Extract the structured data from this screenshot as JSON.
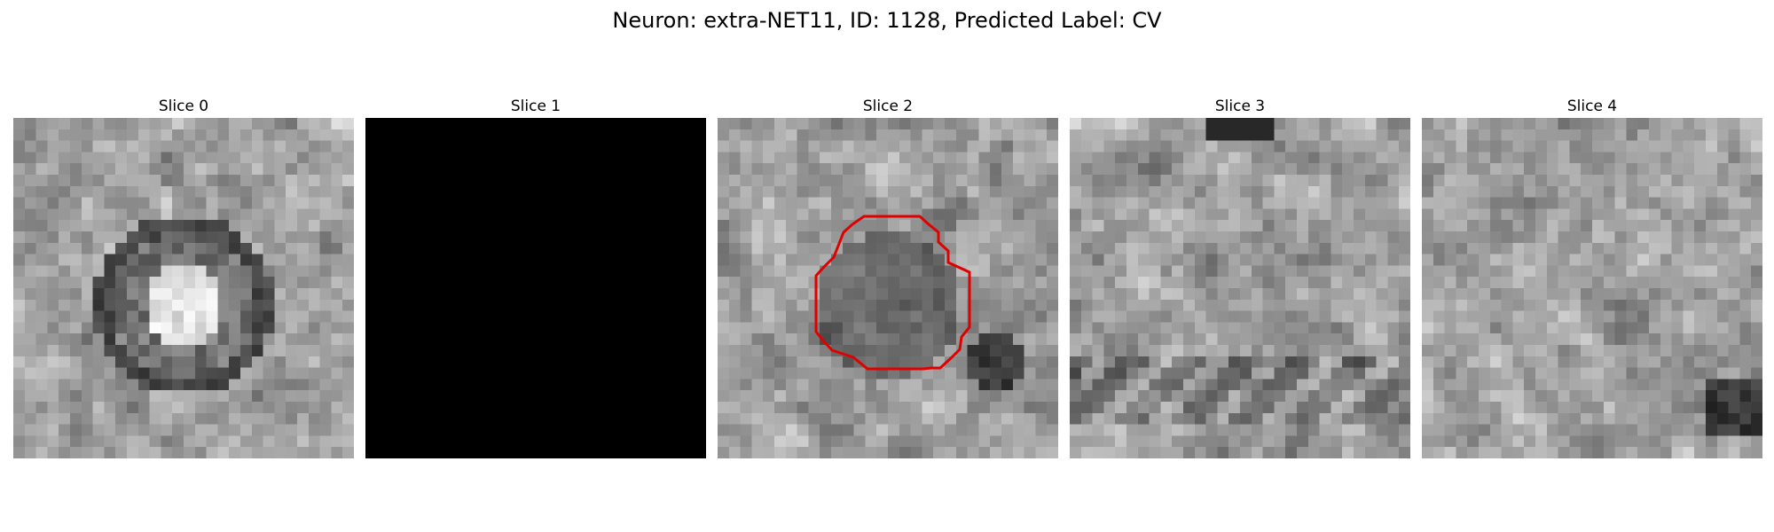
{
  "figure": {
    "title": "Neuron: extra-NET11, ID: 1128, Predicted Label: CV"
  },
  "panels": [
    {
      "label": "Slice 0",
      "kind": "ring",
      "seed": 11
    },
    {
      "label": "Slice 1",
      "kind": "black",
      "seed": 0
    },
    {
      "label": "Slice 2",
      "kind": "noise-blob",
      "seed": 23,
      "outline": true
    },
    {
      "label": "Slice 3",
      "kind": "noise-dark-bands",
      "seed": 37
    },
    {
      "label": "Slice 4",
      "kind": "noise-fine",
      "seed": 51
    }
  ],
  "colors": {
    "outline": "#e00000"
  }
}
